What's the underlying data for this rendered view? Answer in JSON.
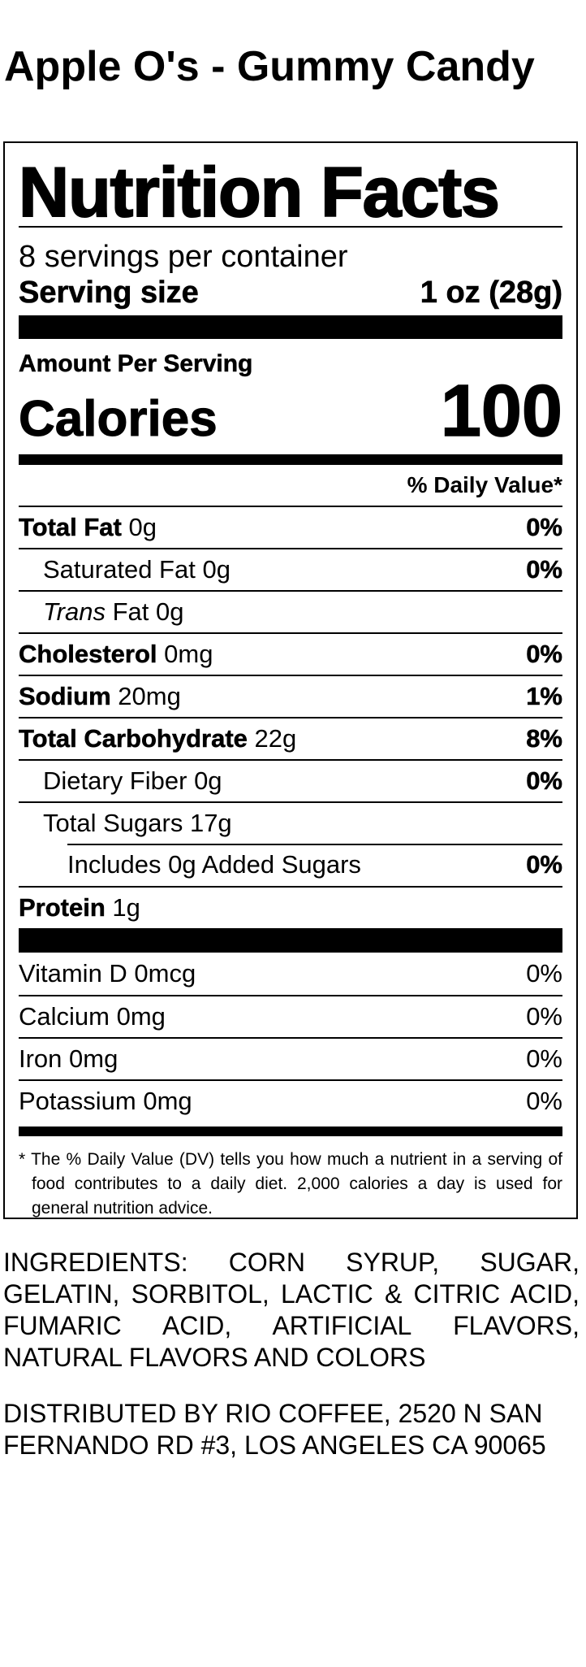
{
  "title": "Apple O's - Gummy Candy",
  "label": {
    "heading": "Nutrition Facts",
    "servings": "8 servings per container",
    "serving_size_label": "Serving size",
    "serving_size": "1 oz (28g)",
    "amount_per_serving": "Amount Per Serving",
    "calories_label": "Calories",
    "calories": "100",
    "dv_header": "% Daily Value*",
    "nutrients": [
      {
        "name": "Total Fat",
        "amount": "0g",
        "dv": "0%"
      },
      {
        "name": "Saturated Fat",
        "amount": "0g",
        "dv": "0%"
      },
      {
        "name_italic": "Trans",
        "name": "Fat",
        "amount": "0g"
      },
      {
        "name": "Cholesterol",
        "amount": "0mg",
        "dv": "0%"
      },
      {
        "name": "Sodium",
        "amount": "20mg",
        "dv": "1%"
      },
      {
        "name": "Total Carbohydrate",
        "amount": "22g",
        "dv": "8%"
      },
      {
        "name": "Dietary Fiber",
        "amount": "0g",
        "dv": "0%"
      },
      {
        "name": "Total Sugars",
        "amount": "17g"
      },
      {
        "name": "Includes 0g Added Sugars",
        "dv": "0%"
      },
      {
        "name": "Protein",
        "amount": "1g"
      }
    ],
    "vitamins": [
      {
        "name": "Vitamin D 0mcg",
        "dv": "0%"
      },
      {
        "name": "Calcium 0mg",
        "dv": "0%"
      },
      {
        "name": "Iron 0mg",
        "dv": "0%"
      },
      {
        "name": "Potassium 0mg",
        "dv": "0%"
      }
    ],
    "footnote": "* The % Daily Value (DV) tells you how much a nutrient in a serving of food contributes to a daily diet. 2,000 calories a day is used for general nutrition advice."
  },
  "ingredients": "INGREDIENTS: CORN SYRUP, SUGAR, GELATIN, SORBITOL, LACTIC & CITRIC ACID, FUMARIC ACID, ARTIFICIAL FLAVORS, NATURAL FLAVORS AND COLORS",
  "distributor": "DISTRIBUTED BY RIO COFFEE, 2520 N SAN FERNANDO RD #3, LOS ANGELES CA 90065"
}
